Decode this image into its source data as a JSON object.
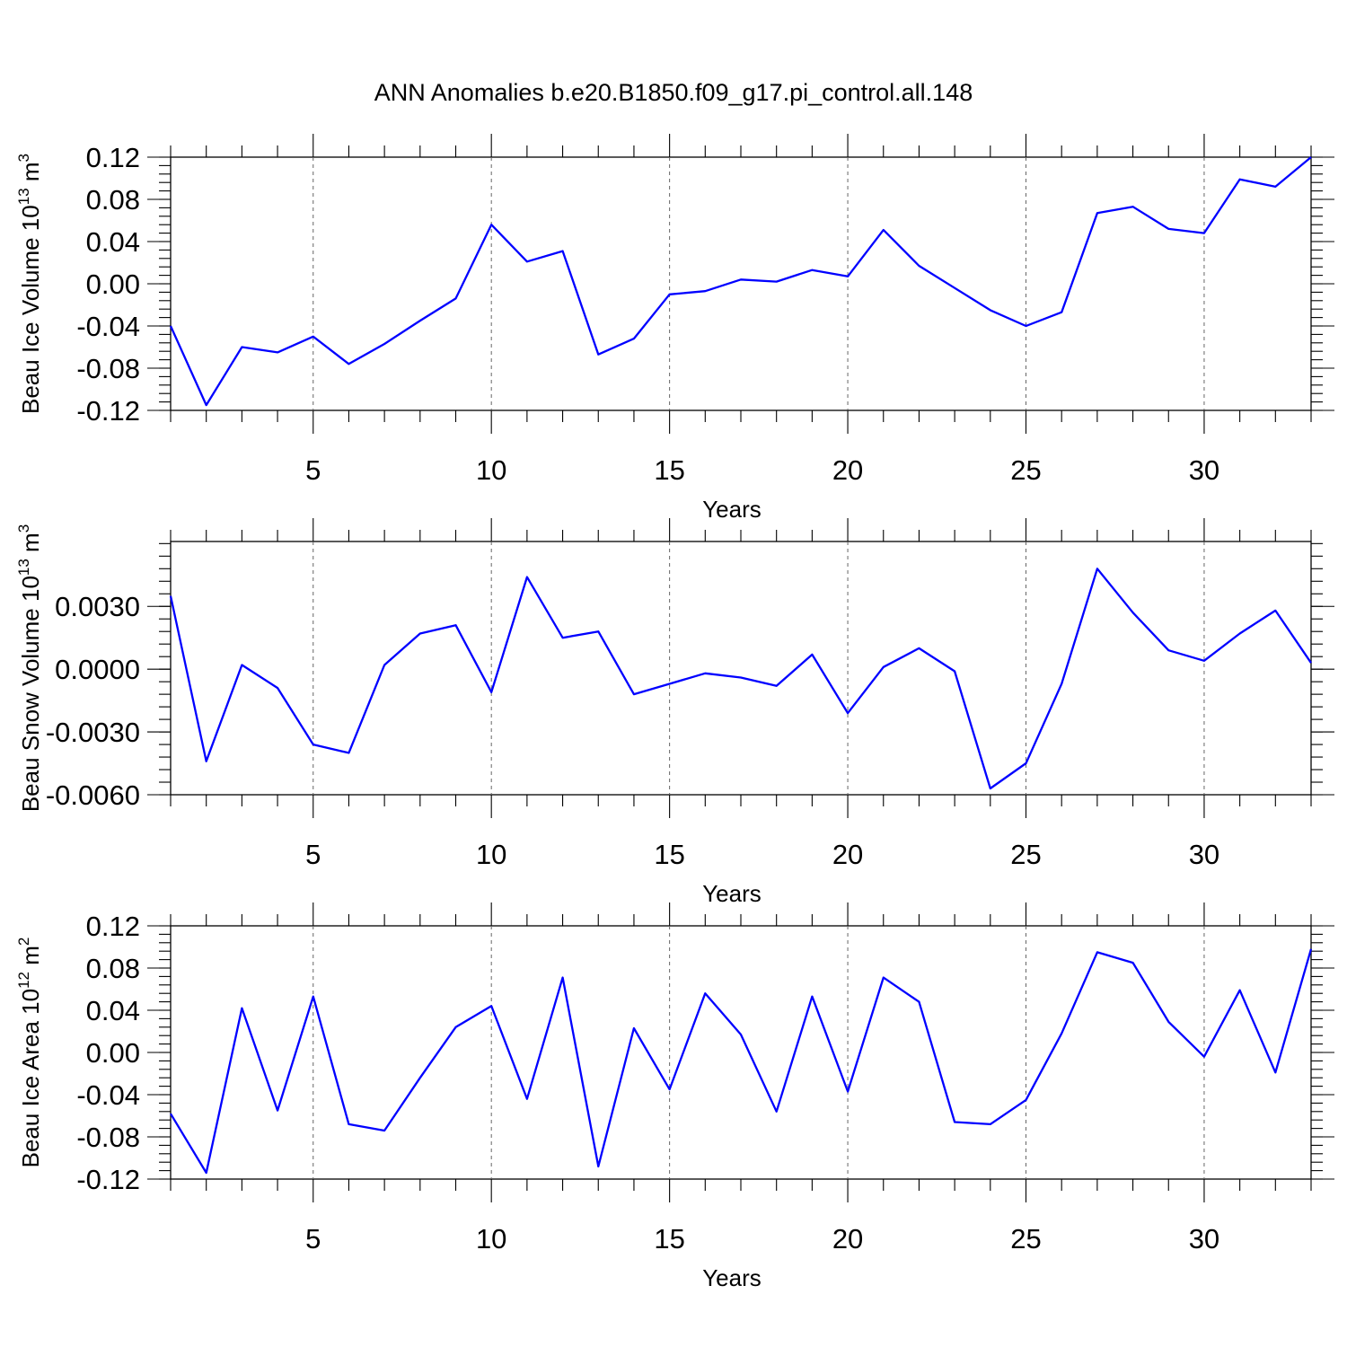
{
  "figure": {
    "title": "ANN Anomalies b.e20.B1850.f09_g17.pi_control.all.148"
  },
  "chart_data": [
    {
      "type": "line",
      "ylabel": "Beau Ice Volume 10",
      "ylabel_exp": "13",
      "ylabel_unit": "m",
      "ylabel_unit_exp": "3",
      "xlabel": "Years",
      "xlim": [
        1,
        33
      ],
      "ylim": [
        -0.12,
        0.12
      ],
      "x_ticks": [
        5,
        10,
        15,
        20,
        25,
        30
      ],
      "y_ticks": [
        -0.12,
        -0.08,
        -0.04,
        0.0,
        0.04,
        0.08,
        0.12
      ],
      "y_tick_labels": [
        "-0.12",
        "-0.08",
        "-0.04",
        "0.00",
        "0.04",
        "0.08",
        "0.12"
      ],
      "y_minor_step": 0.008,
      "grid_x": true,
      "color": "#0000ff",
      "x": [
        1,
        2,
        3,
        4,
        5,
        6,
        7,
        8,
        9,
        10,
        11,
        12,
        13,
        14,
        15,
        16,
        17,
        18,
        19,
        20,
        21,
        22,
        23,
        24,
        25,
        26,
        27,
        28,
        29,
        30,
        31,
        32,
        33
      ],
      "values": [
        -0.04,
        -0.115,
        -0.06,
        -0.065,
        -0.05,
        -0.076,
        -0.057,
        -0.035,
        -0.014,
        0.056,
        0.021,
        0.031,
        -0.067,
        -0.052,
        -0.01,
        -0.007,
        0.004,
        0.002,
        0.013,
        0.007,
        0.051,
        0.017,
        -0.004,
        -0.025,
        -0.04,
        -0.027,
        0.067,
        0.073,
        0.052,
        0.048,
        0.099,
        0.092,
        0.12
      ]
    },
    {
      "type": "line",
      "ylabel": "Beau Snow Volume 10",
      "ylabel_exp": "13",
      "ylabel_unit": "m",
      "ylabel_unit_exp": "3",
      "xlabel": "Years",
      "xlim": [
        1,
        33
      ],
      "ylim": [
        -0.006,
        0.0061
      ],
      "x_ticks": [
        5,
        10,
        15,
        20,
        25,
        30
      ],
      "y_ticks": [
        -0.006,
        -0.003,
        0.0,
        0.003
      ],
      "y_tick_labels": [
        "-0.0060",
        "-0.0030",
        "0.0000",
        "0.0030"
      ],
      "y_minor_step": 0.0006,
      "grid_x": true,
      "color": "#0000ff",
      "x": [
        1,
        2,
        3,
        4,
        5,
        6,
        7,
        8,
        9,
        10,
        11,
        12,
        13,
        14,
        15,
        16,
        17,
        18,
        19,
        20,
        21,
        22,
        23,
        24,
        25,
        26,
        27,
        28,
        29,
        30,
        31,
        32,
        33
      ],
      "values": [
        0.0035,
        -0.0044,
        0.0002,
        -0.0009,
        -0.0036,
        -0.004,
        0.0002,
        0.0017,
        0.0021,
        -0.0011,
        0.0044,
        0.0015,
        0.0018,
        -0.0012,
        -0.0007,
        -0.0002,
        -0.0004,
        -0.0008,
        0.0007,
        -0.0021,
        0.0001,
        0.001,
        -0.0001,
        -0.0057,
        -0.0045,
        -0.0007,
        0.0048,
        0.0027,
        0.0009,
        0.0004,
        0.0017,
        0.0028,
        0.0003
      ]
    },
    {
      "type": "line",
      "ylabel": "Beau Ice Area 10",
      "ylabel_exp": "12",
      "ylabel_unit": "m",
      "ylabel_unit_exp": "2",
      "xlabel": "Years",
      "xlim": [
        1,
        33
      ],
      "ylim": [
        -0.12,
        0.12
      ],
      "x_ticks": [
        5,
        10,
        15,
        20,
        25,
        30
      ],
      "y_ticks": [
        -0.12,
        -0.08,
        -0.04,
        0.0,
        0.04,
        0.08,
        0.12
      ],
      "y_tick_labels": [
        "-0.12",
        "-0.08",
        "-0.04",
        "0.00",
        "0.04",
        "0.08",
        "0.12"
      ],
      "y_minor_step": 0.008,
      "grid_x": true,
      "color": "#0000ff",
      "x": [
        1,
        2,
        3,
        4,
        5,
        6,
        7,
        8,
        9,
        10,
        11,
        12,
        13,
        14,
        15,
        16,
        17,
        18,
        19,
        20,
        21,
        22,
        23,
        24,
        25,
        26,
        27,
        28,
        29,
        30,
        31,
        32,
        33
      ],
      "values": [
        -0.058,
        -0.114,
        0.042,
        -0.055,
        0.053,
        -0.068,
        -0.074,
        -0.024,
        0.024,
        0.044,
        -0.044,
        0.071,
        -0.108,
        0.023,
        -0.035,
        0.056,
        0.017,
        -0.056,
        0.053,
        -0.037,
        0.071,
        0.048,
        -0.066,
        -0.068,
        -0.045,
        0.018,
        0.095,
        0.085,
        0.029,
        -0.004,
        0.059,
        -0.019,
        0.098
      ]
    }
  ]
}
